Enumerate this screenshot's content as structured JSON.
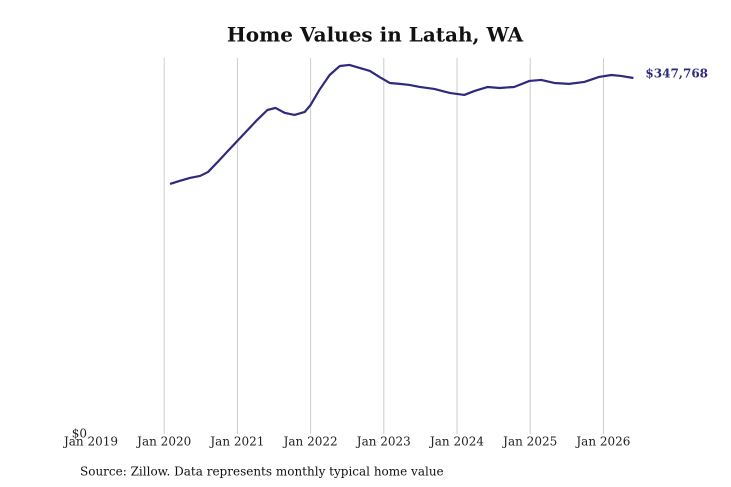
{
  "chart_data": {
    "type": "line",
    "title": "Home Values in Latah, WA",
    "source": "Source: Zillow. Data represents monthly typical home value",
    "x": [
      2020.08,
      2020.21,
      2020.35,
      2020.49,
      2020.6,
      2020.73,
      2020.87,
      2021.0,
      2021.14,
      2021.27,
      2021.41,
      2021.52,
      2021.65,
      2021.78,
      2021.92,
      2022.0,
      2022.12,
      2022.26,
      2022.4,
      2022.53,
      2022.67,
      2022.81,
      2022.94,
      2023.08,
      2023.22,
      2023.35,
      2023.49,
      2023.69,
      2023.9,
      2024.1,
      2024.24,
      2024.42,
      2024.58,
      2024.78,
      2024.99,
      2025.15,
      2025.33,
      2025.53,
      2025.74,
      2025.94,
      2026.11,
      2026.24,
      2026.41
    ],
    "series": [
      {
        "color": "#2e2a7d",
        "values": [
          244250,
          247200,
          250100,
          252100,
          256000,
          265700,
          276500,
          286300,
          297000,
          306800,
          316500,
          318500,
          313600,
          311700,
          314600,
          321400,
          336100,
          350700,
          359500,
          360500,
          357600,
          354700,
          348800,
          342900,
          342000,
          341000,
          339000,
          337100,
          333200,
          331200,
          335100,
          339000,
          338000,
          339000,
          344900,
          345900,
          342900,
          342000,
          343900,
          348800,
          350700,
          349800,
          347768
        ],
        "value_labels": [
          null,
          null,
          null,
          null,
          null,
          null,
          null,
          null,
          null,
          null,
          null,
          null,
          null,
          null,
          null,
          null,
          null,
          null,
          null,
          null,
          null,
          null,
          null,
          null,
          null,
          null,
          null,
          null,
          null,
          null,
          null,
          null,
          null,
          null,
          null,
          null,
          null,
          null,
          null,
          null,
          null,
          null,
          "$347,768"
        ]
      }
    ],
    "xlim": [
      2019,
      2026.5
    ],
    "xticks": [
      {
        "value": 2019,
        "label": "Jan 2019"
      },
      {
        "value": 2020,
        "label": "Jan 2020"
      },
      {
        "value": 2021,
        "label": "Jan 2021"
      },
      {
        "value": 2022,
        "label": "Jan 2022"
      },
      {
        "value": 2023,
        "label": "Jan 2023"
      },
      {
        "value": 2024,
        "label": "Jan 2024"
      },
      {
        "value": 2025,
        "label": "Jan 2025"
      },
      {
        "value": 2026,
        "label": "Jan 2026"
      }
    ],
    "ylim": [
      0,
      367300
    ],
    "yticks": [
      {
        "value": 0,
        "label": "$0"
      }
    ],
    "grid": true
  }
}
